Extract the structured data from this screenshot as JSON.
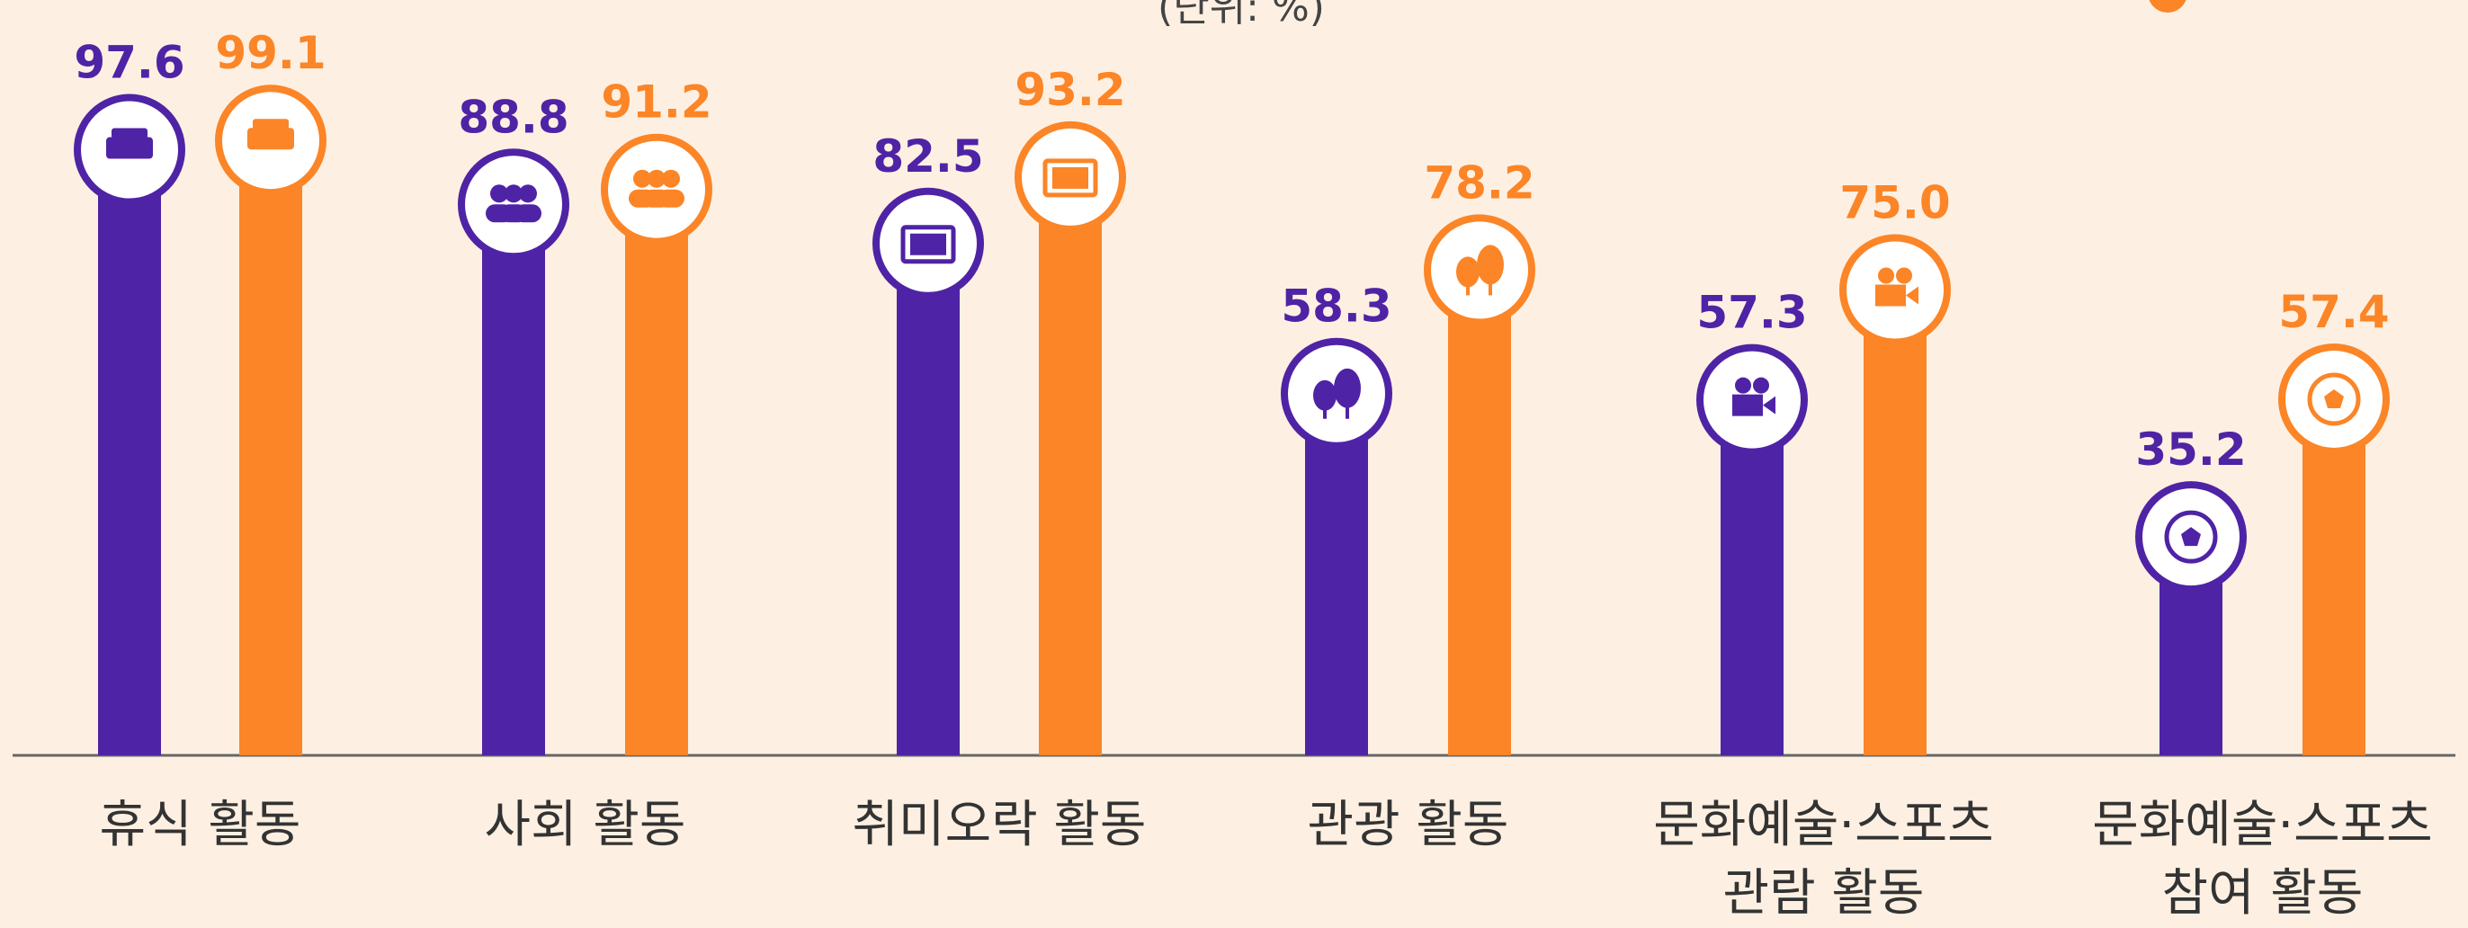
{
  "chart_data": {
    "type": "bar",
    "subtitle": "(단위: %)",
    "categories": [
      "휴식 활동",
      "사회 활동",
      "취미오락 활동",
      "관광 활동",
      "문화예술·스포츠\n관람 활동",
      "문화예술·스포츠\n참여 활동"
    ],
    "series": [
      {
        "color": "#4f23a5",
        "values": [
          97.6,
          88.8,
          82.5,
          58.3,
          57.3,
          35.2
        ],
        "value_labels": [
          "97.6",
          "88.8",
          "82.5",
          "58.3",
          "57.3",
          "35.2"
        ]
      },
      {
        "color": "#fb8527",
        "values": [
          99.1,
          91.2,
          93.2,
          78.2,
          75.0,
          57.4
        ],
        "value_labels": [
          "99.1",
          "91.2",
          "93.2",
          "78.2",
          "75.0",
          "57.4"
        ]
      }
    ]
  }
}
